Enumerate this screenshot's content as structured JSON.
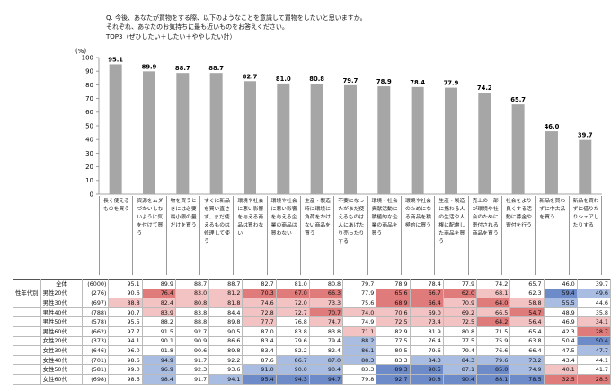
{
  "question": {
    "line1": "Q. 今後、あなたが買物をする際、以下のようなことを意識して買物をしたいと思いますか。",
    "line2": "それぞれ、あなたのお気持ちに最も近いものをお答えください。",
    "line3": "TOP3（ぜひしたい＋したい＋ややしたい計）"
  },
  "colors": {
    "bar": "#a6a6a6",
    "high1": "#6d8bc9",
    "high2": "#a9bde3",
    "low1": "#e07b7b",
    "low2": "#f3c3c3"
  },
  "chart_data": {
    "type": "bar",
    "ylabel": "(%)",
    "ylim": [
      0,
      100
    ],
    "yticks": [
      0,
      10,
      20,
      30,
      40,
      50,
      60,
      70,
      80,
      90,
      100
    ],
    "grid": false,
    "categories": [
      "長く使えるものを買う",
      "資源をムダづかいしないように気を付けて買う",
      "物を買うときには必要最小限の量だけを買う",
      "すぐに新品を買い直さず、まだ使えるものは修理して使う",
      "環境や社会に悪い影響を与える商品は買わない",
      "環境や社会に悪い影響を与える企業の商品は買わない",
      "生産・製造時に環境に負荷をかけない商品を買う",
      "不要になったがまだ使えるものは人にあげたり売ったりする",
      "環境・社会貢献活動に積極的な企業の商品を買う",
      "環境や社会のためになる商品を積極的に買う",
      "生産・製造に携わる人の生活や人権に配慮した商品を買う",
      "売上の一部が環境や社会のために寄付される商品を買う",
      "社会をより良くする活動に募金や寄付を行う",
      "新品を買わずに中古品を買う",
      "新品を買わずに借りたりシェアしたりする"
    ],
    "values": [
      95.1,
      89.9,
      88.7,
      88.7,
      82.7,
      81.0,
      80.8,
      79.7,
      78.9,
      78.4,
      77.9,
      74.2,
      65.7,
      46.0,
      39.7
    ],
    "table": {
      "group_label": "性年代別",
      "rows": [
        {
          "label": "全体",
          "n": "(6000)",
          "values": [
            95.1,
            89.9,
            88.7,
            88.7,
            82.7,
            81.0,
            80.8,
            79.7,
            78.9,
            78.4,
            77.9,
            74.2,
            65.7,
            46.0,
            39.7
          ]
        },
        {
          "label": "男性20代",
          "n": "(276)",
          "values": [
            90.6,
            76.4,
            83.0,
            81.2,
            70.3,
            67.0,
            66.3,
            77.9,
            65.6,
            66.7,
            62.0,
            68.1,
            62.3,
            59.4,
            49.6
          ]
        },
        {
          "label": "男性30代",
          "n": "(697)",
          "values": [
            88.8,
            82.4,
            80.8,
            81.8,
            74.6,
            72.0,
            73.3,
            75.6,
            68.9,
            66.4,
            70.9,
            64.0,
            58.8,
            55.5,
            44.6
          ]
        },
        {
          "label": "男性40代",
          "n": "(788)",
          "values": [
            90.7,
            83.9,
            83.8,
            84.4,
            72.8,
            72.7,
            70.7,
            74.0,
            70.6,
            69.0,
            69.2,
            66.5,
            54.7,
            48.9,
            35.8
          ]
        },
        {
          "label": "男性50代",
          "n": "(578)",
          "values": [
            95.5,
            88.2,
            88.8,
            89.8,
            77.7,
            76.8,
            74.7,
            74.9,
            72.5,
            73.4,
            72.5,
            64.2,
            56.4,
            46.9,
            34.1
          ]
        },
        {
          "label": "男性60代",
          "n": "(662)",
          "values": [
            97.7,
            91.5,
            92.7,
            90.5,
            87.0,
            83.8,
            83.8,
            71.1,
            82.9,
            81.9,
            80.8,
            71.5,
            65.4,
            42.3,
            28.7
          ]
        },
        {
          "label": "女性20代",
          "n": "(373)",
          "values": [
            94.1,
            90.1,
            90.9,
            86.6,
            83.4,
            79.6,
            79.4,
            88.2,
            77.5,
            76.4,
            77.5,
            75.9,
            63.8,
            50.4,
            50.4
          ]
        },
        {
          "label": "女性30代",
          "n": "(646)",
          "values": [
            96.0,
            91.8,
            90.6,
            89.8,
            83.4,
            82.2,
            82.4,
            86.1,
            80.5,
            79.6,
            79.4,
            76.6,
            66.4,
            47.5,
            47.7
          ]
        },
        {
          "label": "女性40代",
          "n": "(701)",
          "values": [
            98.6,
            94.9,
            91.7,
            92.2,
            87.6,
            86.7,
            87.0,
            88.3,
            83.3,
            84.3,
            84.3,
            79.6,
            73.2,
            43.4,
            44.1
          ]
        },
        {
          "label": "女性50代",
          "n": "(581)",
          "values": [
            99.0,
            96.9,
            92.3,
            93.6,
            91.0,
            90.0,
            90.4,
            83.3,
            89.3,
            90.5,
            87.1,
            85.0,
            74.9,
            40.1,
            41.7
          ]
        },
        {
          "label": "女性60代",
          "n": "(698)",
          "values": [
            98.6,
            98.4,
            91.7,
            94.1,
            95.4,
            94.3,
            94.7,
            79.8,
            92.7,
            90.8,
            90.4,
            88.1,
            78.5,
            32.5,
            28.5
          ]
        }
      ]
    }
  }
}
